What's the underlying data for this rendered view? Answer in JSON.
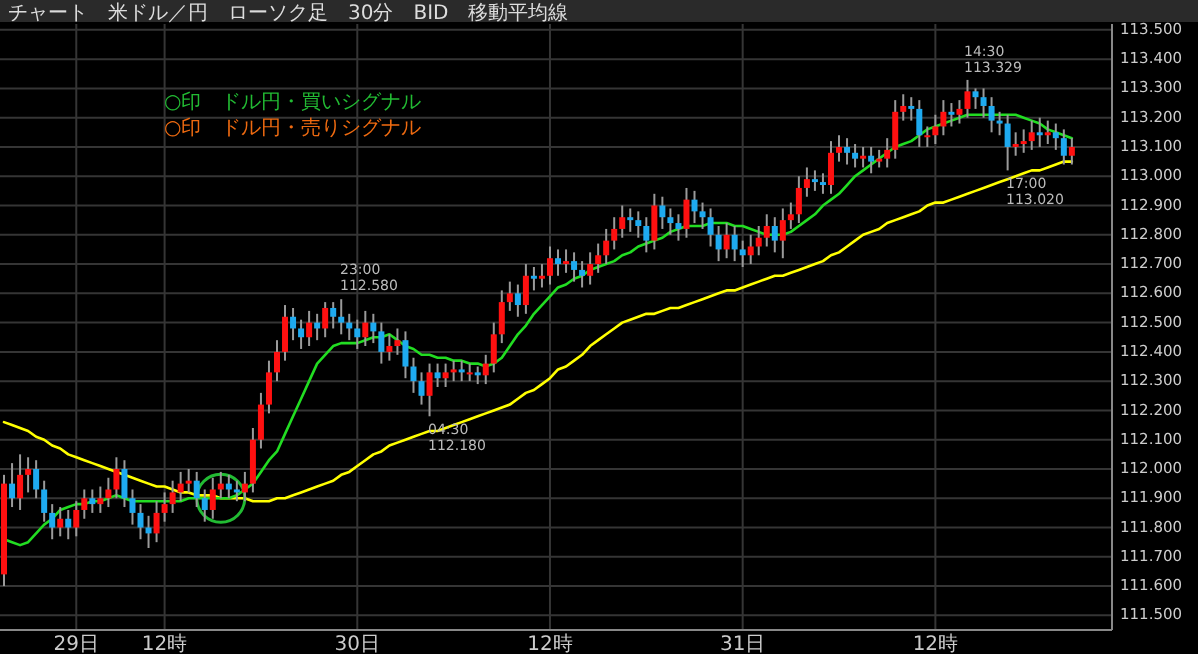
{
  "chart_data": {
    "type": "candlestick",
    "title": "チャート　米ドル／円　ローソク足　30分　BID　移動平均線",
    "categories": [
      null,
      null,
      null,
      null,
      null,
      null,
      null,
      null,
      null,
      "29日",
      null,
      null,
      null,
      null,
      null,
      null,
      null,
      null,
      null,
      null,
      "12時",
      null,
      null,
      null,
      null,
      null,
      null,
      null,
      null,
      null,
      null,
      null,
      null,
      null,
      null,
      null,
      null,
      null,
      null,
      null,
      null,
      null,
      null,
      null,
      "30日",
      null,
      null,
      null,
      null,
      null,
      null,
      null,
      null,
      null,
      null,
      null,
      null,
      null,
      null,
      null,
      null,
      null,
      null,
      null,
      null,
      null,
      null,
      null,
      "12時",
      null,
      null,
      null,
      null,
      null,
      null,
      null,
      null,
      null,
      null,
      null,
      null,
      null,
      null,
      null,
      null,
      null,
      null,
      null,
      null,
      null,
      null,
      null,
      "31日",
      null,
      null,
      null,
      null,
      null,
      null,
      null,
      null,
      null,
      null,
      null,
      null,
      null,
      null,
      null,
      null,
      null,
      null,
      null,
      null,
      null,
      null,
      null,
      "12時",
      null,
      null,
      null,
      null,
      null,
      null,
      null,
      null,
      null,
      null,
      null,
      null,
      null,
      null,
      null,
      null,
      null
    ],
    "ohlc": [
      [
        111.64,
        111.98,
        111.6,
        111.95
      ],
      [
        111.95,
        112.02,
        111.87,
        111.9
      ],
      [
        111.9,
        112.05,
        111.86,
        111.98
      ],
      [
        111.98,
        112.04,
        111.92,
        112.0
      ],
      [
        112.0,
        112.03,
        111.9,
        111.93
      ],
      [
        111.93,
        111.96,
        111.82,
        111.85
      ],
      [
        111.85,
        111.88,
        111.76,
        111.8
      ],
      [
        111.8,
        111.87,
        111.77,
        111.83
      ],
      [
        111.83,
        111.86,
        111.76,
        111.8
      ],
      [
        111.8,
        111.89,
        111.77,
        111.86
      ],
      [
        111.86,
        111.93,
        111.83,
        111.9
      ],
      [
        111.9,
        111.93,
        111.85,
        111.88
      ],
      [
        111.88,
        111.94,
        111.85,
        111.9
      ],
      [
        111.9,
        111.97,
        111.87,
        111.93
      ],
      [
        111.93,
        112.04,
        111.9,
        112.0
      ],
      [
        112.0,
        112.03,
        111.87,
        111.9
      ],
      [
        111.9,
        111.93,
        111.81,
        111.85
      ],
      [
        111.85,
        111.88,
        111.76,
        111.8
      ],
      [
        111.8,
        111.84,
        111.73,
        111.78
      ],
      [
        111.78,
        111.89,
        111.75,
        111.85
      ],
      [
        111.85,
        111.92,
        111.82,
        111.88
      ],
      [
        111.88,
        111.96,
        111.85,
        111.92
      ],
      [
        111.92,
        111.99,
        111.89,
        111.95
      ],
      [
        111.95,
        112.0,
        111.92,
        111.96
      ],
      [
        111.96,
        111.99,
        111.87,
        111.9
      ],
      [
        111.9,
        111.93,
        111.82,
        111.86
      ],
      [
        111.86,
        111.97,
        111.83,
        111.93
      ],
      [
        111.93,
        111.99,
        111.9,
        111.95
      ],
      [
        111.95,
        111.98,
        111.9,
        111.93
      ],
      [
        111.93,
        111.96,
        111.89,
        111.92
      ],
      [
        111.92,
        111.99,
        111.89,
        111.95
      ],
      [
        111.95,
        112.14,
        111.92,
        112.1
      ],
      [
        112.1,
        112.26,
        112.07,
        112.22
      ],
      [
        112.22,
        112.37,
        112.19,
        112.33
      ],
      [
        112.33,
        112.44,
        112.3,
        112.4
      ],
      [
        112.4,
        112.56,
        112.37,
        112.52
      ],
      [
        112.52,
        112.55,
        112.44,
        112.48
      ],
      [
        112.48,
        112.51,
        112.41,
        112.45
      ],
      [
        112.45,
        112.54,
        112.42,
        112.5
      ],
      [
        112.5,
        112.53,
        112.44,
        112.48
      ],
      [
        112.48,
        112.57,
        112.45,
        112.55
      ],
      [
        112.55,
        112.57,
        112.48,
        112.52
      ],
      [
        112.52,
        112.58,
        112.46,
        112.5
      ],
      [
        112.5,
        112.53,
        112.44,
        112.48
      ],
      [
        112.48,
        112.51,
        112.41,
        112.45
      ],
      [
        112.45,
        112.54,
        112.42,
        112.5
      ],
      [
        112.5,
        112.53,
        112.43,
        112.47
      ],
      [
        112.47,
        112.5,
        112.36,
        112.4
      ],
      [
        112.4,
        112.46,
        112.37,
        112.42
      ],
      [
        112.42,
        112.48,
        112.39,
        112.44
      ],
      [
        112.44,
        112.47,
        112.31,
        112.35
      ],
      [
        112.35,
        112.38,
        112.26,
        112.3
      ],
      [
        112.3,
        112.33,
        112.22,
        112.25
      ],
      [
        112.25,
        112.36,
        112.18,
        112.33
      ],
      [
        112.33,
        112.36,
        112.28,
        112.31
      ],
      [
        112.31,
        112.36,
        112.28,
        112.33
      ],
      [
        112.33,
        112.37,
        112.3,
        112.34
      ],
      [
        112.34,
        112.37,
        112.3,
        112.33
      ],
      [
        112.33,
        112.36,
        112.3,
        112.33
      ],
      [
        112.33,
        112.35,
        112.29,
        112.32
      ],
      [
        112.32,
        112.39,
        112.29,
        112.36
      ],
      [
        112.36,
        112.5,
        112.33,
        112.46
      ],
      [
        112.46,
        112.61,
        112.43,
        112.57
      ],
      [
        112.57,
        112.64,
        112.54,
        112.6
      ],
      [
        112.6,
        112.63,
        112.52,
        112.56
      ],
      [
        112.56,
        112.7,
        112.53,
        112.66
      ],
      [
        112.66,
        112.69,
        112.61,
        112.65
      ],
      [
        112.65,
        112.7,
        112.62,
        112.66
      ],
      [
        112.66,
        112.76,
        112.63,
        112.72
      ],
      [
        112.72,
        112.75,
        112.66,
        112.7
      ],
      [
        112.7,
        112.75,
        112.67,
        112.71
      ],
      [
        112.71,
        112.74,
        112.64,
        112.68
      ],
      [
        112.68,
        112.71,
        112.62,
        112.66
      ],
      [
        112.66,
        112.74,
        112.63,
        112.7
      ],
      [
        112.7,
        112.77,
        112.67,
        112.73
      ],
      [
        112.73,
        112.82,
        112.7,
        112.78
      ],
      [
        112.78,
        112.86,
        112.75,
        112.82
      ],
      [
        112.82,
        112.9,
        112.79,
        112.86
      ],
      [
        112.86,
        112.89,
        112.81,
        112.85
      ],
      [
        112.85,
        112.88,
        112.79,
        112.83
      ],
      [
        112.83,
        112.86,
        112.74,
        112.78
      ],
      [
        112.78,
        112.94,
        112.75,
        112.9
      ],
      [
        112.9,
        112.93,
        112.82,
        112.86
      ],
      [
        112.86,
        112.89,
        112.8,
        112.84
      ],
      [
        112.84,
        112.87,
        112.78,
        112.82
      ],
      [
        112.82,
        112.96,
        112.79,
        112.92
      ],
      [
        112.92,
        112.95,
        112.84,
        112.88
      ],
      [
        112.88,
        112.91,
        112.82,
        112.86
      ],
      [
        112.86,
        112.89,
        112.76,
        112.8
      ],
      [
        112.8,
        112.83,
        112.71,
        112.75
      ],
      [
        112.75,
        112.84,
        112.72,
        112.8
      ],
      [
        112.8,
        112.83,
        112.71,
        112.75
      ],
      [
        112.75,
        112.78,
        112.69,
        112.73
      ],
      [
        112.73,
        112.8,
        112.7,
        112.76
      ],
      [
        112.76,
        112.83,
        112.73,
        112.79
      ],
      [
        112.79,
        112.87,
        112.76,
        112.83
      ],
      [
        112.83,
        112.86,
        112.74,
        112.78
      ],
      [
        112.78,
        112.89,
        112.72,
        112.85
      ],
      [
        112.85,
        112.91,
        112.82,
        112.87
      ],
      [
        112.87,
        113.0,
        112.84,
        112.96
      ],
      [
        112.96,
        113.03,
        112.93,
        112.99
      ],
      [
        112.99,
        113.02,
        112.95,
        112.98
      ],
      [
        112.98,
        113.01,
        112.94,
        112.97
      ],
      [
        112.97,
        113.12,
        112.94,
        113.08
      ],
      [
        113.08,
        113.14,
        113.05,
        113.1
      ],
      [
        113.1,
        113.13,
        113.04,
        113.08
      ],
      [
        113.08,
        113.11,
        113.03,
        113.06
      ],
      [
        113.06,
        113.1,
        113.03,
        113.07
      ],
      [
        113.07,
        113.1,
        113.01,
        113.05
      ],
      [
        113.05,
        113.09,
        113.03,
        113.06
      ],
      [
        113.06,
        113.13,
        113.03,
        113.09
      ],
      [
        113.09,
        113.26,
        113.06,
        113.22
      ],
      [
        113.22,
        113.28,
        113.19,
        113.24
      ],
      [
        113.24,
        113.27,
        113.19,
        113.23
      ],
      [
        113.23,
        113.26,
        113.1,
        113.14
      ],
      [
        113.14,
        113.17,
        113.1,
        113.14
      ],
      [
        113.14,
        113.21,
        113.11,
        113.17
      ],
      [
        113.17,
        113.26,
        113.14,
        113.22
      ],
      [
        113.22,
        113.25,
        113.17,
        113.21
      ],
      [
        113.21,
        113.26,
        113.18,
        113.23
      ],
      [
        113.23,
        113.329,
        113.2,
        113.29
      ],
      [
        113.29,
        113.3,
        113.23,
        113.27
      ],
      [
        113.27,
        113.3,
        113.2,
        113.24
      ],
      [
        113.24,
        113.27,
        113.15,
        113.19
      ],
      [
        113.19,
        113.22,
        113.14,
        113.18
      ],
      [
        113.18,
        113.21,
        113.02,
        113.1
      ],
      [
        113.1,
        113.15,
        113.07,
        113.11
      ],
      [
        113.11,
        113.16,
        113.08,
        113.12
      ],
      [
        113.12,
        113.19,
        113.09,
        113.15
      ],
      [
        113.15,
        113.2,
        113.1,
        113.14
      ],
      [
        113.14,
        113.19,
        113.11,
        113.15
      ],
      [
        113.15,
        113.18,
        113.09,
        113.13
      ],
      [
        113.13,
        113.16,
        113.04,
        113.07
      ],
      [
        113.07,
        113.13,
        113.04,
        113.1
      ]
    ],
    "colors": [
      "#ff1010",
      "#1eaaf0",
      "#ff1010",
      "#ff1010",
      "#1eaaf0",
      "#1eaaf0",
      "#1eaaf0",
      "#ff1010",
      "#1eaaf0",
      "#ff1010",
      "#ff1010",
      "#1eaaf0",
      "#ff1010",
      "#ff1010",
      "#ff1010",
      "#1eaaf0",
      "#1eaaf0",
      "#1eaaf0",
      "#1eaaf0",
      "#ff1010",
      "#ff1010",
      "#ff1010",
      "#ff1010",
      "#ff1010",
      "#1eaaf0",
      "#1eaaf0",
      "#ff1010",
      "#ff1010",
      "#1eaaf0",
      "#1eaaf0",
      "#ff1010",
      "#ff1010",
      "#ff1010",
      "#ff1010",
      "#ff1010",
      "#ff1010",
      "#1eaaf0",
      "#1eaaf0",
      "#ff1010",
      "#1eaaf0",
      "#ff1010",
      "#1eaaf0",
      "#1eaaf0",
      "#1eaaf0",
      "#1eaaf0",
      "#ff1010",
      "#1eaaf0",
      "#1eaaf0",
      "#ff1010",
      "#ff1010",
      "#1eaaf0",
      "#1eaaf0",
      "#1eaaf0",
      "#ff1010",
      "#1eaaf0",
      "#ff1010",
      "#ff1010",
      "#1eaaf0",
      "#ff1010",
      "#1eaaf0",
      "#ff1010",
      "#ff1010",
      "#ff1010",
      "#ff1010",
      "#1eaaf0",
      "#ff1010",
      "#1eaaf0",
      "#ff1010",
      "#ff1010",
      "#1eaaf0",
      "#ff1010",
      "#1eaaf0",
      "#1eaaf0",
      "#ff1010",
      "#ff1010",
      "#ff1010",
      "#ff1010",
      "#ff1010",
      "#1eaaf0",
      "#1eaaf0",
      "#1eaaf0",
      "#ff1010",
      "#1eaaf0",
      "#1eaaf0",
      "#1eaaf0",
      "#ff1010",
      "#1eaaf0",
      "#1eaaf0",
      "#1eaaf0",
      "#1eaaf0",
      "#ff1010",
      "#1eaaf0",
      "#1eaaf0",
      "#ff1010",
      "#ff1010",
      "#ff1010",
      "#1eaaf0",
      "#ff1010",
      "#ff1010",
      "#ff1010",
      "#ff1010",
      "#1eaaf0",
      "#1eaaf0",
      "#ff1010",
      "#ff1010",
      "#1eaaf0",
      "#1eaaf0",
      "#ff1010",
      "#1eaaf0",
      "#ff1010",
      "#ff1010",
      "#ff1010",
      "#ff1010",
      "#1eaaf0",
      "#1eaaf0",
      "#ff1010",
      "#ff1010",
      "#ff1010",
      "#1eaaf0",
      "#ff1010",
      "#ff1010",
      "#1eaaf0",
      "#1eaaf0",
      "#1eaaf0",
      "#1eaaf0",
      "#1eaaf0",
      "#ff1010",
      "#ff1010",
      "#ff1010",
      "#1eaaf0",
      "#ff1010",
      "#1eaaf0",
      "#1eaaf0",
      "#ff1010"
    ],
    "series": [
      {
        "type": "line",
        "color": "#ffff00",
        "values": [
          112.16,
          112.15,
          112.14,
          112.13,
          112.11,
          112.1,
          112.08,
          112.07,
          112.05,
          112.04,
          112.03,
          112.02,
          112.01,
          112.0,
          111.99,
          111.98,
          111.97,
          111.96,
          111.95,
          111.94,
          111.94,
          111.93,
          111.92,
          111.92,
          111.91,
          111.91,
          111.91,
          111.9,
          111.9,
          111.9,
          111.9,
          111.89,
          111.89,
          111.89,
          111.9,
          111.9,
          111.91,
          111.92,
          111.93,
          111.94,
          111.95,
          111.96,
          111.98,
          111.99,
          112.01,
          112.03,
          112.05,
          112.06,
          112.08,
          112.09,
          112.1,
          112.11,
          112.12,
          112.13,
          112.13,
          112.14,
          112.15,
          112.16,
          112.17,
          112.18,
          112.19,
          112.2,
          112.21,
          112.22,
          112.24,
          112.26,
          112.27,
          112.29,
          112.31,
          112.34,
          112.35,
          112.37,
          112.39,
          112.42,
          112.44,
          112.46,
          112.48,
          112.5,
          112.51,
          112.52,
          112.53,
          112.53,
          112.54,
          112.55,
          112.55,
          112.56,
          112.57,
          112.58,
          112.59,
          112.6,
          112.61,
          112.61,
          112.62,
          112.63,
          112.64,
          112.65,
          112.66,
          112.66,
          112.67,
          112.68,
          112.69,
          112.7,
          112.71,
          112.73,
          112.74,
          112.76,
          112.78,
          112.8,
          112.81,
          112.82,
          112.84,
          112.85,
          112.86,
          112.87,
          112.88,
          112.9,
          112.91,
          112.91,
          112.92,
          112.93,
          112.94,
          112.95,
          112.96,
          112.97,
          112.98,
          112.99,
          113.0,
          113.01,
          113.02,
          113.02,
          113.03,
          113.04,
          113.05,
          113.05
        ]
      },
      {
        "type": "line",
        "color": "#22dd22",
        "values": [
          111.76,
          111.75,
          111.74,
          111.75,
          111.78,
          111.81,
          111.83,
          111.86,
          111.87,
          111.88,
          111.88,
          111.89,
          111.89,
          111.9,
          111.91,
          111.9,
          111.89,
          111.89,
          111.89,
          111.89,
          111.89,
          111.89,
          111.89,
          111.9,
          111.9,
          111.9,
          111.9,
          111.9,
          111.9,
          111.91,
          111.93,
          111.95,
          111.99,
          112.03,
          112.06,
          112.12,
          112.18,
          112.24,
          112.3,
          112.36,
          112.39,
          112.42,
          112.43,
          112.43,
          112.43,
          112.44,
          112.45,
          112.45,
          112.46,
          112.44,
          112.42,
          112.41,
          112.39,
          112.39,
          112.38,
          112.38,
          112.37,
          112.37,
          112.36,
          112.36,
          112.35,
          112.36,
          112.38,
          112.42,
          112.46,
          112.49,
          112.53,
          112.56,
          112.59,
          112.62,
          112.63,
          112.65,
          112.66,
          112.68,
          112.69,
          112.7,
          112.71,
          112.73,
          112.74,
          112.76,
          112.77,
          112.78,
          112.79,
          112.81,
          112.82,
          112.83,
          112.83,
          112.83,
          112.84,
          112.84,
          112.84,
          112.83,
          112.83,
          112.82,
          112.81,
          112.8,
          112.8,
          112.8,
          112.81,
          112.83,
          112.85,
          112.87,
          112.9,
          112.92,
          112.94,
          112.97,
          113.0,
          113.02,
          113.04,
          113.06,
          113.08,
          113.1,
          113.11,
          113.12,
          113.14,
          113.16,
          113.17,
          113.18,
          113.19,
          113.2,
          113.21,
          113.21,
          113.21,
          113.21,
          113.21,
          113.21,
          113.21,
          113.2,
          113.19,
          113.18,
          113.16,
          113.15,
          113.14,
          113.13
        ]
      },
      {
        "type": "scatter",
        "name": "○印　ドル円・買いシグナル",
        "color": "#22bb33",
        "marker": "circle",
        "values": [
          null,
          null,
          null,
          null,
          null,
          null,
          null,
          null,
          null,
          null,
          null,
          null,
          null,
          null,
          null,
          null,
          null,
          null,
          null,
          null,
          null,
          null,
          null,
          null,
          null,
          null,
          null,
          111.9,
          null,
          null,
          null,
          null,
          null,
          null,
          null,
          null,
          null,
          null,
          null,
          null,
          null,
          null,
          null,
          null,
          null,
          null,
          null,
          null,
          null,
          null,
          null,
          null,
          null,
          null,
          null,
          null,
          null,
          null,
          null,
          null,
          null,
          null,
          null,
          null,
          null,
          null,
          null,
          null,
          null,
          null,
          null,
          null,
          null,
          null,
          null,
          null,
          null,
          null,
          null,
          null,
          null,
          null,
          null,
          null,
          null,
          null,
          null,
          null,
          null,
          null,
          null,
          null,
          null,
          null,
          null,
          null,
          null,
          null,
          null,
          null,
          null,
          null,
          null,
          null,
          null,
          null,
          null,
          null,
          null,
          null,
          null,
          null,
          null,
          null,
          null,
          null,
          null,
          null,
          null,
          null,
          null,
          null,
          null,
          null,
          null,
          null,
          null,
          null,
          null,
          null,
          null,
          null,
          null,
          null
        ]
      },
      {
        "type": "scatter",
        "name": "○印　ドル円・売りシグナル",
        "color": "#ee6a10",
        "marker": "circle",
        "values": [
          null,
          null,
          null,
          null,
          null,
          null,
          null,
          null,
          null,
          null,
          null,
          null,
          null,
          null,
          null,
          null,
          null,
          null,
          null,
          null,
          null,
          null,
          null,
          null,
          null,
          null,
          null,
          null,
          null,
          null,
          null,
          null,
          null,
          null,
          null,
          null,
          null,
          null,
          null,
          null,
          null,
          null,
          null,
          null,
          null,
          null,
          null,
          null,
          null,
          null,
          null,
          null,
          null,
          null,
          null,
          null,
          null,
          null,
          null,
          null,
          null,
          null,
          null,
          null,
          null,
          null,
          null,
          null,
          null,
          null,
          null,
          null,
          null,
          null,
          null,
          null,
          null,
          null,
          null,
          null,
          null,
          null,
          null,
          null,
          null,
          null,
          null,
          null,
          null,
          null,
          null,
          null,
          null,
          null,
          null,
          null,
          null,
          null,
          null,
          null,
          null,
          null,
          null,
          null,
          null,
          null,
          null,
          null,
          null,
          null,
          null,
          null,
          null,
          null,
          null,
          null,
          null,
          null,
          null,
          null,
          null,
          null,
          null,
          null,
          null,
          null,
          null,
          null,
          null,
          null,
          null,
          null,
          null,
          null
        ]
      }
    ],
    "annotations": [
      "23:00\n112.580",
      "04:30\n112.180",
      "14:30\n113.329",
      "17:00\n113.020"
    ],
    "ylim": [
      111.45,
      113.52
    ],
    "yticks": [
      {
        "value": 111.5,
        "label": "111.500"
      },
      {
        "value": 111.6,
        "label": "111.600"
      },
      {
        "value": 111.7,
        "label": "111.700"
      },
      {
        "value": 111.8,
        "label": "111.800"
      },
      {
        "value": 111.9,
        "label": "111.900"
      },
      {
        "value": 112.0,
        "label": "112.000"
      },
      {
        "value": 112.1,
        "label": "112.100"
      },
      {
        "value": 112.2,
        "label": "112.200"
      },
      {
        "value": 112.3,
        "label": "112.300"
      },
      {
        "value": 112.4,
        "label": "112.400"
      },
      {
        "value": 112.5,
        "label": "112.500"
      },
      {
        "value": 112.6,
        "label": "112.600"
      },
      {
        "value": 112.7,
        "label": "112.700"
      },
      {
        "value": 112.8,
        "label": "112.800"
      },
      {
        "value": 112.9,
        "label": "112.900"
      },
      {
        "value": 113.0,
        "label": "113.000"
      },
      {
        "value": 113.1,
        "label": "113.100"
      },
      {
        "value": 113.2,
        "label": "113.200"
      },
      {
        "value": 113.3,
        "label": "113.300"
      },
      {
        "value": 113.4,
        "label": "113.400"
      },
      {
        "value": 113.5,
        "label": "113.500"
      }
    ],
    "grid": true,
    "legend": "top left"
  }
}
